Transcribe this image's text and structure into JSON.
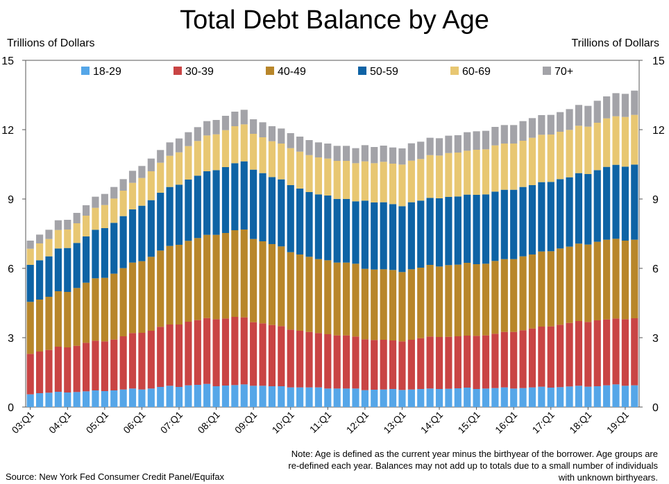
{
  "chart_data": {
    "type": "bar",
    "stacked": true,
    "title": "Total Debt Balance by Age",
    "ylabel_left": "Trillions of Dollars",
    "ylabel_right": "Trillions of Dollars",
    "ylim": [
      0,
      15
    ],
    "yticks": [
      0,
      3,
      6,
      9,
      12,
      15
    ],
    "x_tick_labels": [
      "03:Q1",
      "04:Q1",
      "05:Q1",
      "06:Q1",
      "07:Q1",
      "08:Q1",
      "09:Q1",
      "10:Q1",
      "11:Q1",
      "12:Q1",
      "13:Q1",
      "14:Q1",
      "15:Q1",
      "16:Q1",
      "17:Q1",
      "18:Q1",
      "19:Q1"
    ],
    "x_tick_indices": [
      0,
      4,
      8,
      12,
      16,
      20,
      24,
      28,
      32,
      36,
      40,
      44,
      48,
      52,
      56,
      60,
      64
    ],
    "series_colors": [
      "#55A6E8",
      "#C94444",
      "#B8862A",
      "#0E63A5",
      "#E8C772",
      "#A3A3A8"
    ],
    "series": [
      {
        "name": "18-29",
        "values": [
          0.55,
          0.6,
          0.62,
          0.66,
          0.63,
          0.65,
          0.68,
          0.72,
          0.69,
          0.72,
          0.76,
          0.8,
          0.76,
          0.8,
          0.87,
          0.92,
          0.87,
          0.94,
          0.96,
          1.0,
          0.9,
          0.93,
          0.95,
          0.98,
          0.92,
          0.92,
          0.9,
          0.9,
          0.85,
          0.85,
          0.85,
          0.85,
          0.8,
          0.8,
          0.8,
          0.8,
          0.73,
          0.75,
          0.76,
          0.78,
          0.74,
          0.76,
          0.78,
          0.8,
          0.78,
          0.79,
          0.81,
          0.84,
          0.78,
          0.8,
          0.82,
          0.85,
          0.8,
          0.82,
          0.85,
          0.88,
          0.84,
          0.86,
          0.89,
          0.92,
          0.88,
          0.9,
          0.94,
          0.98,
          0.92,
          0.94
        ]
      },
      {
        "name": "30-39",
        "values": [
          1.75,
          1.8,
          1.85,
          1.95,
          1.95,
          2.0,
          2.1,
          2.15,
          2.15,
          2.2,
          2.3,
          2.4,
          2.45,
          2.5,
          2.6,
          2.65,
          2.7,
          2.75,
          2.8,
          2.85,
          2.9,
          2.9,
          2.95,
          2.9,
          2.75,
          2.7,
          2.65,
          2.6,
          2.5,
          2.45,
          2.4,
          2.35,
          2.35,
          2.3,
          2.3,
          2.25,
          2.2,
          2.15,
          2.15,
          2.1,
          2.1,
          2.15,
          2.2,
          2.25,
          2.25,
          2.25,
          2.25,
          2.25,
          2.3,
          2.3,
          2.35,
          2.4,
          2.45,
          2.5,
          2.55,
          2.6,
          2.65,
          2.7,
          2.75,
          2.8,
          2.8,
          2.85,
          2.85,
          2.85,
          2.88,
          2.9
        ]
      },
      {
        "name": "40-49",
        "values": [
          2.25,
          2.25,
          2.3,
          2.4,
          2.4,
          2.5,
          2.6,
          2.7,
          2.75,
          2.85,
          2.95,
          3.05,
          3.1,
          3.2,
          3.3,
          3.4,
          3.45,
          3.5,
          3.55,
          3.6,
          3.65,
          3.7,
          3.75,
          3.8,
          3.6,
          3.55,
          3.5,
          3.45,
          3.35,
          3.3,
          3.25,
          3.2,
          3.2,
          3.15,
          3.15,
          3.15,
          3.05,
          3.05,
          3.05,
          3.05,
          3.0,
          3.05,
          3.05,
          3.1,
          3.05,
          3.1,
          3.1,
          3.15,
          3.1,
          3.1,
          3.15,
          3.15,
          3.15,
          3.2,
          3.2,
          3.25,
          3.25,
          3.3,
          3.3,
          3.35,
          3.35,
          3.4,
          3.45,
          3.45,
          3.4,
          3.4
        ]
      },
      {
        "name": "50-59",
        "values": [
          1.6,
          1.7,
          1.75,
          1.85,
          1.9,
          1.95,
          2.0,
          2.1,
          2.15,
          2.2,
          2.25,
          2.3,
          2.4,
          2.45,
          2.5,
          2.55,
          2.6,
          2.65,
          2.7,
          2.75,
          2.8,
          2.85,
          2.9,
          2.95,
          3.0,
          2.95,
          2.9,
          2.9,
          2.9,
          2.85,
          2.8,
          2.8,
          2.8,
          2.75,
          2.75,
          2.7,
          2.95,
          2.9,
          2.9,
          2.85,
          2.85,
          2.9,
          2.9,
          2.9,
          2.95,
          2.95,
          2.95,
          2.95,
          3.0,
          3.0,
          3.0,
          3.0,
          3.0,
          3.0,
          3.0,
          3.0,
          3.0,
          3.0,
          3.0,
          3.05,
          3.05,
          3.1,
          3.15,
          3.2,
          3.2,
          3.25
        ]
      },
      {
        "name": "60-69",
        "values": [
          0.7,
          0.73,
          0.75,
          0.8,
          0.8,
          0.85,
          0.9,
          0.95,
          1.0,
          1.05,
          1.1,
          1.15,
          1.2,
          1.25,
          1.3,
          1.35,
          1.4,
          1.45,
          1.5,
          1.55,
          1.55,
          1.6,
          1.6,
          1.6,
          1.55,
          1.55,
          1.55,
          1.55,
          1.6,
          1.6,
          1.6,
          1.6,
          1.6,
          1.65,
          1.65,
          1.65,
          1.7,
          1.7,
          1.75,
          1.75,
          1.8,
          1.8,
          1.8,
          1.85,
          1.85,
          1.9,
          1.9,
          1.9,
          1.95,
          1.95,
          2.0,
          2.0,
          2.0,
          2.0,
          2.05,
          2.05,
          2.05,
          2.05,
          2.05,
          2.05,
          2.05,
          2.05,
          2.1,
          2.1,
          2.15,
          2.15
        ]
      },
      {
        "name": "70+",
        "values": [
          0.35,
          0.38,
          0.4,
          0.42,
          0.42,
          0.45,
          0.45,
          0.48,
          0.48,
          0.5,
          0.5,
          0.52,
          0.52,
          0.55,
          0.55,
          0.58,
          0.6,
          0.6,
          0.6,
          0.62,
          0.62,
          0.62,
          0.63,
          0.63,
          0.63,
          0.65,
          0.65,
          0.65,
          0.65,
          0.65,
          0.65,
          0.65,
          0.65,
          0.65,
          0.65,
          0.65,
          0.7,
          0.7,
          0.7,
          0.7,
          0.7,
          0.75,
          0.75,
          0.75,
          0.75,
          0.75,
          0.75,
          0.8,
          0.8,
          0.8,
          0.8,
          0.8,
          0.8,
          0.85,
          0.85,
          0.85,
          0.85,
          0.85,
          0.9,
          0.9,
          0.9,
          0.95,
          0.95,
          1.0,
          1.0,
          1.05
        ]
      }
    ]
  },
  "source": "Source: New York Fed Consumer Credit Panel/Equifax",
  "note": "Note: Age is defined as the current year minus the birthyear of the borrower. Age groups are re-defined each year. Balances may not add up to totals due to a small number of individuals with unknown birthyears."
}
